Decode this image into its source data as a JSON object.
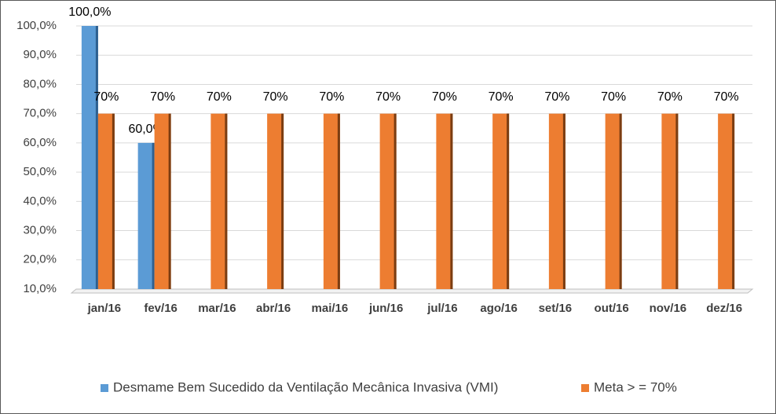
{
  "chart_data": {
    "type": "bar",
    "categories": [
      "jan/16",
      "fev/16",
      "mar/16",
      "abr/16",
      "mai/16",
      "jun/16",
      "jul/16",
      "ago/16",
      "set/16",
      "out/16",
      "nov/16",
      "dez/16"
    ],
    "series": [
      {
        "name": "Desmame Bem Sucedido da Ventilação Mecânica Invasiva (VMI)",
        "color": "#5b9bd5",
        "values": [
          100,
          60,
          null,
          null,
          null,
          null,
          null,
          null,
          null,
          null,
          null,
          null
        ],
        "value_labels": [
          "100,0%",
          "60,0%",
          null,
          null,
          null,
          null,
          null,
          null,
          null,
          null,
          null,
          null
        ]
      },
      {
        "name": "Meta > = 70%",
        "color": "#ed7d31",
        "values": [
          70,
          70,
          70,
          70,
          70,
          70,
          70,
          70,
          70,
          70,
          70,
          70
        ],
        "value_labels": [
          "70%",
          "70%",
          "70%",
          "70%",
          "70%",
          "70%",
          "70%",
          "70%",
          "70%",
          "70%",
          "70%",
          "70%"
        ]
      }
    ],
    "ylim": [
      10,
      100
    ],
    "yticks": [
      {
        "value": 10,
        "label": "10,0%"
      },
      {
        "value": 20,
        "label": "20,0%"
      },
      {
        "value": 30,
        "label": "30,0%"
      },
      {
        "value": 40,
        "label": "40,0%"
      },
      {
        "value": 50,
        "label": "50,0%"
      },
      {
        "value": 60,
        "label": "60,0%"
      },
      {
        "value": 70,
        "label": "70,0%"
      },
      {
        "value": 80,
        "label": "80,0%"
      },
      {
        "value": 90,
        "label": "90,0%"
      },
      {
        "value": 100,
        "label": "100,0%"
      }
    ],
    "grid": true,
    "legend": "bottom"
  }
}
